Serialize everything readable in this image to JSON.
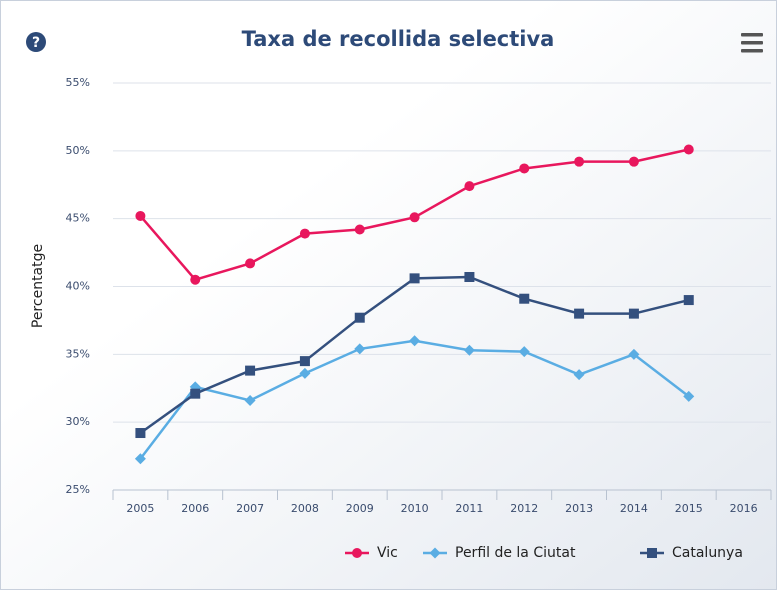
{
  "chart_data": {
    "type": "line",
    "title": "Taxa de recollida selectiva",
    "y_label": "Percentatge",
    "categories": [
      "2005",
      "2006",
      "2007",
      "2008",
      "2009",
      "2010",
      "2011",
      "2012",
      "2013",
      "2014",
      "2015",
      "2016"
    ],
    "series": [
      {
        "name": "Vic",
        "color": "#e8175d",
        "marker": "circle",
        "values": [
          45.2,
          40.5,
          41.7,
          43.9,
          44.2,
          45.1,
          47.4,
          48.7,
          49.2,
          49.2,
          50.1,
          null
        ]
      },
      {
        "name": "Perfil de la Ciutat",
        "color": "#5aade3",
        "marker": "diamond",
        "values": [
          27.3,
          32.6,
          31.6,
          33.6,
          35.4,
          36.0,
          35.3,
          35.2,
          33.5,
          35.0,
          31.9,
          null
        ]
      },
      {
        "name": "Catalunya",
        "color": "#34507e",
        "marker": "square",
        "values": [
          29.2,
          32.1,
          33.8,
          34.5,
          37.7,
          40.6,
          40.7,
          39.1,
          38.0,
          38.0,
          39.0,
          null
        ]
      }
    ],
    "ylim": [
      25,
      55
    ],
    "yticks": [
      {
        "value": 25,
        "label": "25%"
      },
      {
        "value": 30,
        "label": "30%"
      },
      {
        "value": 35,
        "label": "35%"
      },
      {
        "value": 40,
        "label": "40%"
      },
      {
        "value": 45,
        "label": "45%"
      },
      {
        "value": 50,
        "label": "50%"
      },
      {
        "value": 55,
        "label": "55%"
      }
    ],
    "grid": true,
    "legend": "bottom-right"
  }
}
